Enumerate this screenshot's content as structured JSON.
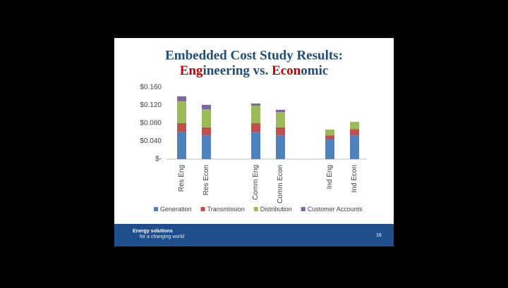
{
  "chart_data": {
    "type": "stacked_bar",
    "title": "Embedded Cost Study Results:",
    "subtitle_parts": [
      {
        "text": "Eng",
        "color": "#c00000"
      },
      {
        "text": "ineering vs. ",
        "color": "#1f4e79"
      },
      {
        "text": "Econ",
        "color": "#c00000"
      },
      {
        "text": "omic",
        "color": "#1f4e79"
      }
    ],
    "categories": [
      "Res Eng",
      "Res Econ",
      null,
      "Comm Eng",
      "Comm Econ",
      null,
      "Ind Eng",
      "Ind Econ"
    ],
    "series": [
      {
        "name": "Generation",
        "color": "#4f81bd",
        "values": [
          0.06,
          0.053,
          null,
          0.06,
          0.053,
          null,
          0.044,
          0.053
        ]
      },
      {
        "name": "Transmission",
        "color": "#c0504d",
        "values": [
          0.02,
          0.018,
          null,
          0.02,
          0.018,
          null,
          0.009,
          0.014
        ]
      },
      {
        "name": "Distribution",
        "color": "#9bbb59",
        "values": [
          0.049,
          0.04,
          null,
          0.039,
          0.034,
          null,
          0.013,
          0.016
        ]
      },
      {
        "name": "Customer Accounts",
        "color": "#8064a2",
        "values": [
          0.011,
          0.01,
          null,
          0.005,
          0.005,
          null,
          0,
          0
        ]
      }
    ],
    "ylim": [
      0,
      0.16
    ],
    "yticks": [
      {
        "value": 0,
        "label": "$-"
      },
      {
        "value": 0.04,
        "label": "$0.040"
      },
      {
        "value": 0.08,
        "label": "$0.080"
      },
      {
        "value": 0.12,
        "label": "$0.120"
      },
      {
        "value": 0.16,
        "label": "$0.160"
      }
    ],
    "grid": false,
    "legend": "bottom"
  },
  "footer": {
    "line1": "Energy solutions",
    "line2": "for a changing world",
    "page": "16"
  }
}
